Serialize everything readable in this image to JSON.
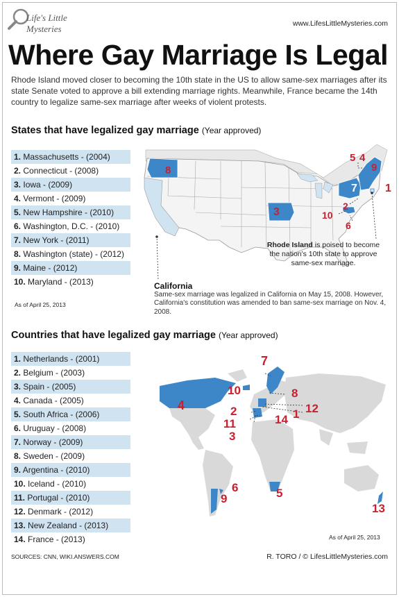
{
  "logo": {
    "text": "Life's Little Mysteries"
  },
  "site_url": "www.LifesLittleMysteries.com",
  "title": "Where Gay Marriage Is Legal",
  "intro": "Rhode Island moved closer to becoming the 10th state in the US to allow same-sex marriages after its state Senate voted to approve a bill extending marriage rights. Meanwhile, France became the 14th country to legalize same-sex marriage after weeks of violent protests.",
  "states_section": {
    "title": "States that have legalized gay marriage",
    "subtitle": "(Year approved)",
    "items": [
      {
        "num": "1.",
        "text": "Massachusetts - (2004)"
      },
      {
        "num": "2.",
        "text": "Connecticut - (2008)"
      },
      {
        "num": "3.",
        "text": "Iowa - (2009)"
      },
      {
        "num": "4.",
        "text": "Vermont - (2009)"
      },
      {
        "num": "5.",
        "text": "New Hampshire - (2010)"
      },
      {
        "num": "6.",
        "text": "Washington, D.C. - (2010)"
      },
      {
        "num": "7.",
        "text": "New York - (2011)"
      },
      {
        "num": "8.",
        "text": "Washington (state) - (2012)"
      },
      {
        "num": "9.",
        "text": "Maine - (2012)"
      },
      {
        "num": "10.",
        "text": "Maryland - (2013)"
      }
    ],
    "as_of": "As of April 25, 2013",
    "map_labels": [
      "1",
      "2",
      "3",
      "4",
      "5",
      "6",
      "7",
      "8",
      "9",
      "10"
    ],
    "ri_bold": "Rhode Island",
    "ri_note": " is poised to become the nation's 10th state to approve same-sex marriage.",
    "ca_title": "California",
    "ca_note": "Same-sex marriage was legalized in California on May 15, 2008. However, California's constitution was amended to ban same-sex marriage on Nov. 4, 2008."
  },
  "countries_section": {
    "title": "Countries that have legalized gay marriage",
    "subtitle": "(Year approved)",
    "items": [
      {
        "num": "1.",
        "text": "Netherlands - (2001)"
      },
      {
        "num": "2.",
        "text": "Belgium - (2003)"
      },
      {
        "num": "3.",
        "text": "Spain - (2005)"
      },
      {
        "num": "4.",
        "text": "Canada - (2005)"
      },
      {
        "num": "5.",
        "text": "South Africa - (2006)"
      },
      {
        "num": "6.",
        "text": "Uruguay - (2008)"
      },
      {
        "num": "7.",
        "text": "Norway - (2009)"
      },
      {
        "num": "8.",
        "text": "Sweden - (2009)"
      },
      {
        "num": "9.",
        "text": "Argentina - (2010)"
      },
      {
        "num": "10.",
        "text": "Iceland - (2010)"
      },
      {
        "num": "11.",
        "text": "Portugal - (2010)"
      },
      {
        "num": "12.",
        "text": "Denmark - (2012)"
      },
      {
        "num": "13.",
        "text": "New Zealand - (2013)"
      },
      {
        "num": "14.",
        "text": "France - (2013)"
      }
    ],
    "as_of": "As of April 25, 2013",
    "map_labels": [
      "1",
      "2",
      "3",
      "4",
      "5",
      "6",
      "7",
      "8",
      "9",
      "10",
      "11",
      "12",
      "13",
      "14"
    ]
  },
  "sources": "SOURCES: CNN, WIKI.ANSWERS.COM",
  "credit": "R. TORO / © LifesLittleMysteries.com",
  "colors": {
    "accent_blue": "#3d87c8",
    "light_blue": "#cfe3f1",
    "label_red": "#c8202f",
    "land_gray": "#d9d9d9"
  }
}
